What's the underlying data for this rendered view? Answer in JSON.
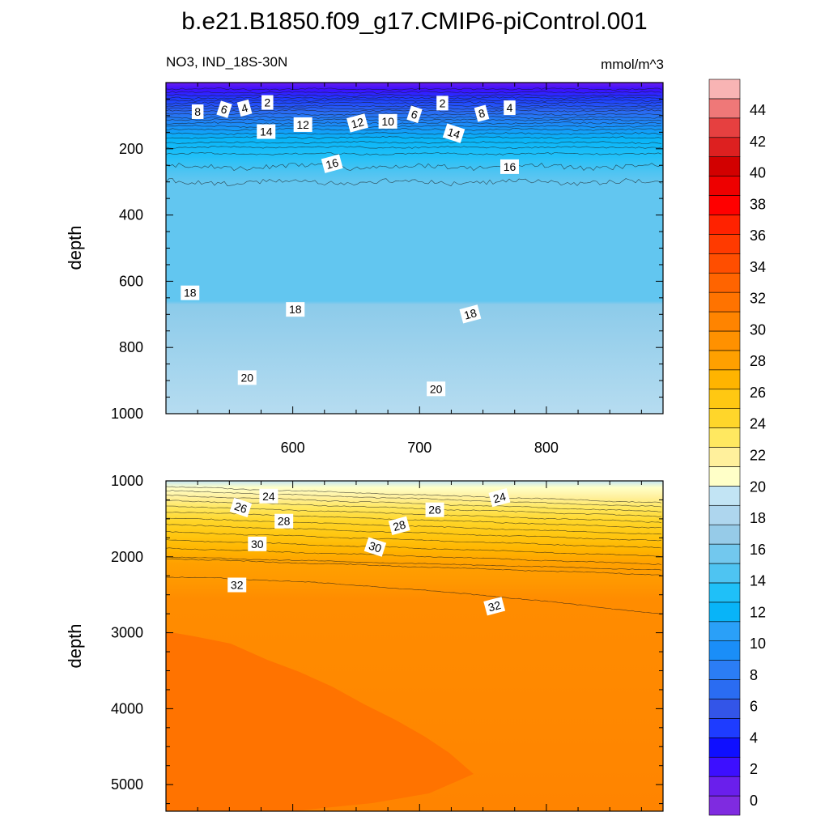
{
  "title": "b.e21.B1850.f09_g17.CMIP6-piControl.001",
  "left_subtitle": "NO3, IND_18S-30N",
  "right_subtitle": "mmol/m^3",
  "chart_data": [
    {
      "type": "contour",
      "name": "upper-panel",
      "ylabel": "depth",
      "xlim": [
        500,
        892
      ],
      "ylim": [
        1000,
        0
      ],
      "yticks": [
        200,
        400,
        600,
        800,
        1000
      ],
      "xticks": [
        600,
        700,
        800
      ],
      "contour_labels": [
        {
          "v": "2",
          "x": 580,
          "y": 60
        },
        {
          "v": "4",
          "x": 562,
          "y": 77
        },
        {
          "v": "6",
          "x": 546,
          "y": 81
        },
        {
          "v": "8",
          "x": 525,
          "y": 88
        },
        {
          "v": "12",
          "x": 608,
          "y": 127
        },
        {
          "v": "12",
          "x": 651,
          "y": 122
        },
        {
          "v": "10",
          "x": 675,
          "y": 117
        },
        {
          "v": "6",
          "x": 696,
          "y": 96
        },
        {
          "v": "2",
          "x": 718,
          "y": 62
        },
        {
          "v": "8",
          "x": 749,
          "y": 93
        },
        {
          "v": "4",
          "x": 771,
          "y": 76
        },
        {
          "v": "14",
          "x": 579,
          "y": 148
        },
        {
          "v": "14",
          "x": 727,
          "y": 153
        },
        {
          "v": "16",
          "x": 631,
          "y": 245
        },
        {
          "v": "16",
          "x": 771,
          "y": 254
        },
        {
          "v": "18",
          "x": 519,
          "y": 635
        },
        {
          "v": "18",
          "x": 602,
          "y": 685
        },
        {
          "v": "18",
          "x": 740,
          "y": 699
        },
        {
          "v": "20",
          "x": 564,
          "y": 891
        },
        {
          "v": "20",
          "x": 713,
          "y": 925
        }
      ]
    },
    {
      "type": "contour",
      "name": "lower-panel",
      "ylabel": "depth",
      "xlim": [
        500,
        892
      ],
      "ylim": [
        5350,
        1000
      ],
      "yticks": [
        1000,
        2000,
        3000,
        4000,
        5000
      ],
      "contour_labels": [
        {
          "v": "24",
          "x": 581,
          "y": 1200
        },
        {
          "v": "24",
          "x": 763,
          "y": 1220
        },
        {
          "v": "26",
          "x": 559,
          "y": 1350
        },
        {
          "v": "26",
          "x": 712,
          "y": 1380
        },
        {
          "v": "28",
          "x": 593,
          "y": 1530
        },
        {
          "v": "28",
          "x": 684,
          "y": 1590
        },
        {
          "v": "30",
          "x": 572,
          "y": 1830
        },
        {
          "v": "30",
          "x": 665,
          "y": 1870
        },
        {
          "v": "32",
          "x": 556,
          "y": 2370
        },
        {
          "v": "32",
          "x": 759,
          "y": 2650
        }
      ]
    }
  ],
  "colorbar": {
    "tick_labels": [
      "0",
      "2",
      "4",
      "6",
      "8",
      "10",
      "12",
      "14",
      "16",
      "18",
      "20",
      "22",
      "24",
      "26",
      "28",
      "30",
      "32",
      "34",
      "36",
      "38",
      "40",
      "42",
      "44"
    ],
    "colors": [
      "#7f2be0",
      "#6a1fec",
      "#3d0fff",
      "#0f0fff",
      "#1e3cff",
      "#3355e8",
      "#2a6cf2",
      "#2b7df5",
      "#1a8ef8",
      "#2aa0f8",
      "#08b4f8",
      "#1fc0f8",
      "#4ec4f2",
      "#72c8ee",
      "#96cbe8",
      "#aed6ee",
      "#c2e4f4",
      "#ffffc8",
      "#fff09c",
      "#ffe860",
      "#ffd62a",
      "#ffc812",
      "#ffb400",
      "#ffa000",
      "#ff9100",
      "#ff8400",
      "#ff7300",
      "#ff6400",
      "#ff4e00",
      "#ff3a00",
      "#ff2200",
      "#ff0000",
      "#ee0000",
      "#d20000",
      "#dd2020",
      "#e64040",
      "#ef7878",
      "#f8b4b4"
    ]
  }
}
